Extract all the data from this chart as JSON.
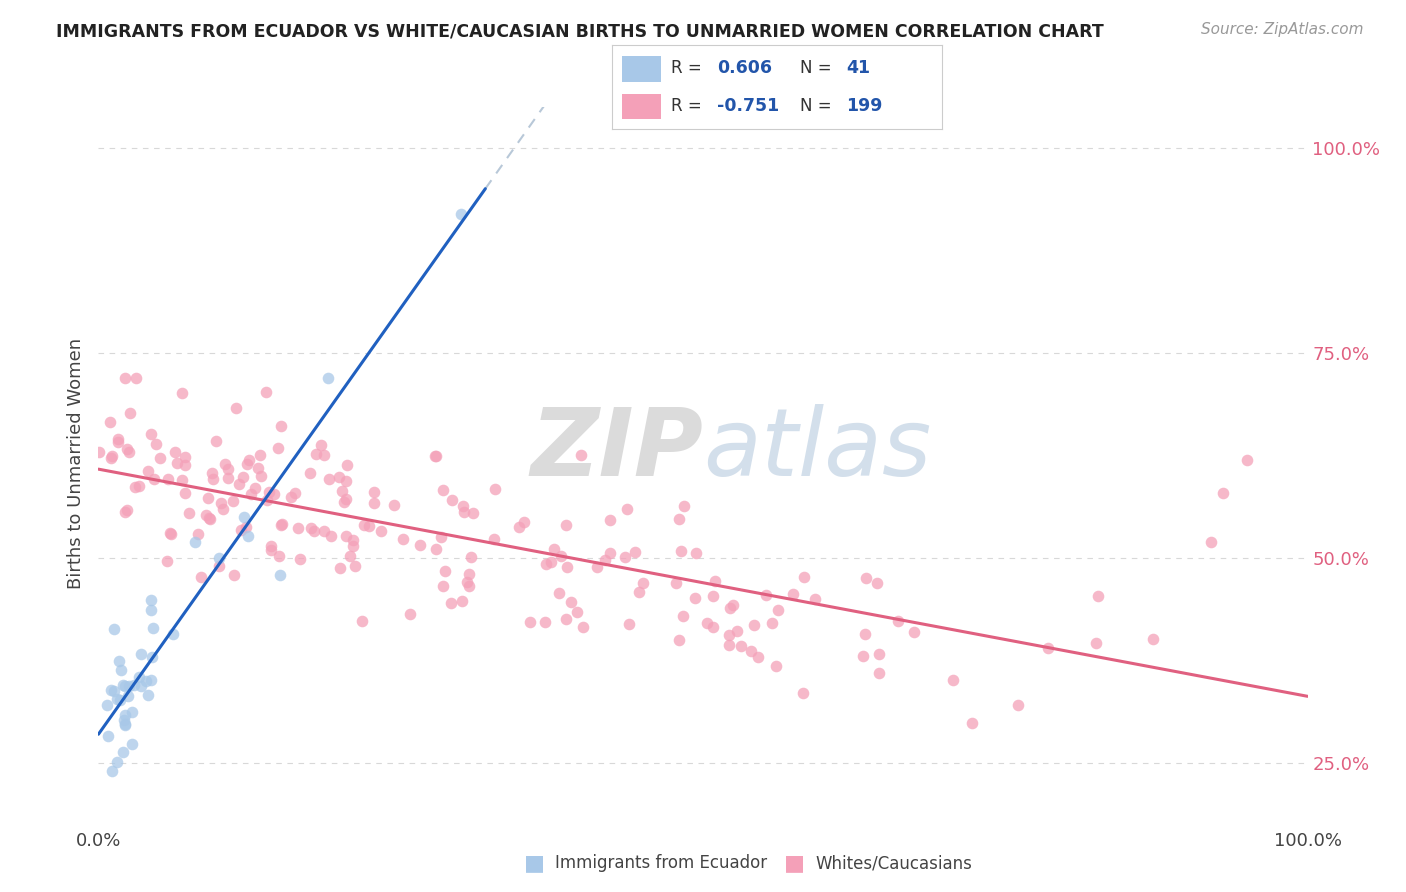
{
  "title": "IMMIGRANTS FROM ECUADOR VS WHITE/CAUCASIAN BIRTHS TO UNMARRIED WOMEN CORRELATION CHART",
  "source_text": "Source: ZipAtlas.com",
  "ylabel": "Births to Unmarried Women",
  "ecuador_color": "#a8c8e8",
  "white_color": "#f4a0b8",
  "trendline_ecuador_color": "#2060c0",
  "trendline_white_color": "#e06080",
  "trendline_ecuador_ext_color": "#b0c8e8",
  "background_color": "#ffffff",
  "grid_color": "#d8d8d8",
  "legend_R_color": "#2255aa",
  "legend_N_color": "#2255aa",
  "watermark_zip_color": "#c8c8c8",
  "watermark_atlas_color": "#a8c0d8",
  "ecuador_seed": 123,
  "white_seed": 456,
  "xlim": [
    0.0,
    1.0
  ],
  "ylim": [
    0.18,
    1.05
  ],
  "yticks": [
    0.25,
    0.5,
    0.75,
    1.0
  ],
  "ytick_labels": [
    "25.0%",
    "50.0%",
    "75.0%",
    "100.0%"
  ],
  "xticks": [
    0.0,
    1.0
  ],
  "xtick_labels": [
    "0.0%",
    "100.0%"
  ]
}
